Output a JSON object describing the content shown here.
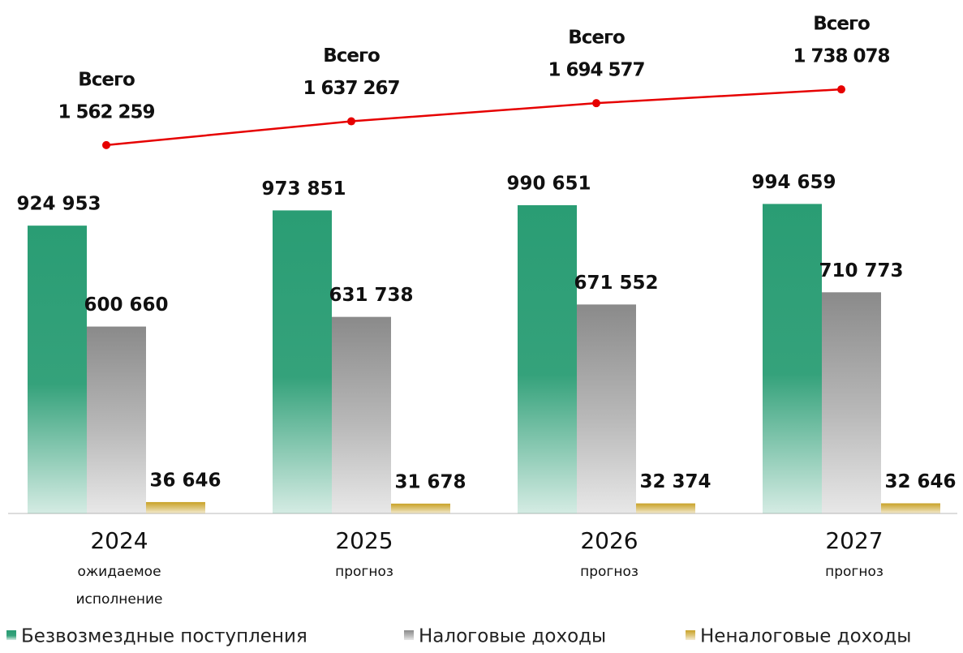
{
  "chart_data": {
    "type": "bar",
    "categories": [
      "2024",
      "2025",
      "2026",
      "2027"
    ],
    "category_notes": [
      "ожидаемое исполнение",
      "прогноз",
      "прогноз",
      "прогноз"
    ],
    "series": [
      {
        "name": "Безвозмездные поступления",
        "color": "#2a9d74",
        "values": [
          924953,
          973851,
          990651,
          994659
        ],
        "value_labels": [
          "924 953",
          "973 851",
          "990 651",
          "994 659"
        ]
      },
      {
        "name": "Налоговые доходы",
        "color": "#8a8a8a",
        "values": [
          600660,
          631738,
          671552,
          710773
        ],
        "value_labels": [
          "600 660",
          "631 738",
          "671 552",
          "710 773"
        ]
      },
      {
        "name": "Неналоговые доходы",
        "color": "#c9a227",
        "values": [
          36646,
          31678,
          32374,
          32646
        ],
        "value_labels": [
          "36 646",
          "31 678",
          "32 374",
          "32 646"
        ]
      }
    ],
    "line": {
      "name": "Всего",
      "color": "#e60000",
      "axis": "y2",
      "values": [
        1562259,
        1637267,
        1694577,
        1738078
      ],
      "value_labels": [
        "1 562 259",
        "1 637 267",
        "1 694 577",
        "1 738 078"
      ]
    },
    "ylim": [
      0,
      1650000
    ],
    "y2lim": [
      400000,
      2020000
    ]
  }
}
